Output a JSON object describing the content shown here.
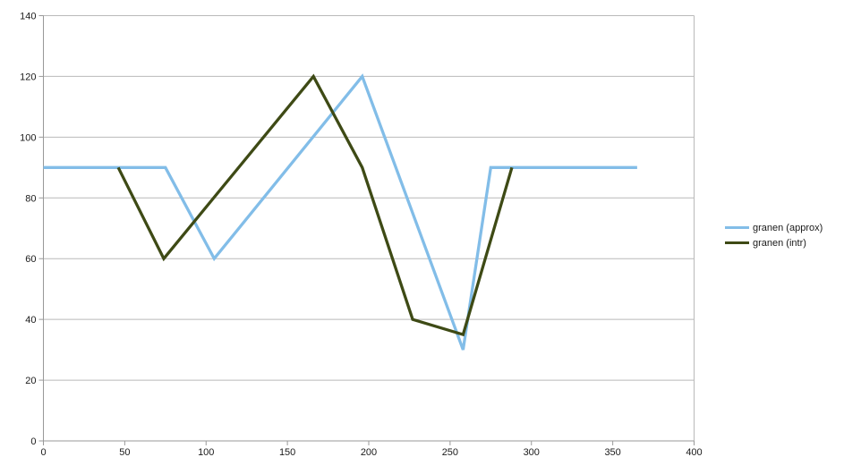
{
  "chart_data": {
    "type": "line",
    "title": "",
    "xlabel": "",
    "ylabel": "",
    "xlim": [
      0,
      400
    ],
    "ylim": [
      0,
      140
    ],
    "x_ticks": [
      0,
      50,
      100,
      150,
      200,
      250,
      300,
      350,
      400
    ],
    "y_ticks": [
      0,
      20,
      40,
      60,
      80,
      100,
      120,
      140
    ],
    "grid": "horizontal",
    "legend_position": "right",
    "series": [
      {
        "name": "granen (approx)",
        "color": "#82bde8",
        "points": [
          [
            0,
            90
          ],
          [
            75,
            90
          ],
          [
            105,
            60
          ],
          [
            196,
            120
          ],
          [
            258,
            30
          ],
          [
            275,
            90
          ],
          [
            365,
            90
          ]
        ]
      },
      {
        "name": "granen (intr)",
        "color": "#3e4a15",
        "points": [
          [
            46,
            90
          ],
          [
            74,
            60
          ],
          [
            166,
            120
          ],
          [
            196,
            90
          ],
          [
            227,
            40
          ],
          [
            258,
            35
          ],
          [
            288,
            90
          ]
        ]
      }
    ],
    "colors": {
      "gridline": "#b9b9b9",
      "axis": "#999999",
      "tick_label": "#1a1a1a",
      "background": "#ffffff"
    }
  }
}
